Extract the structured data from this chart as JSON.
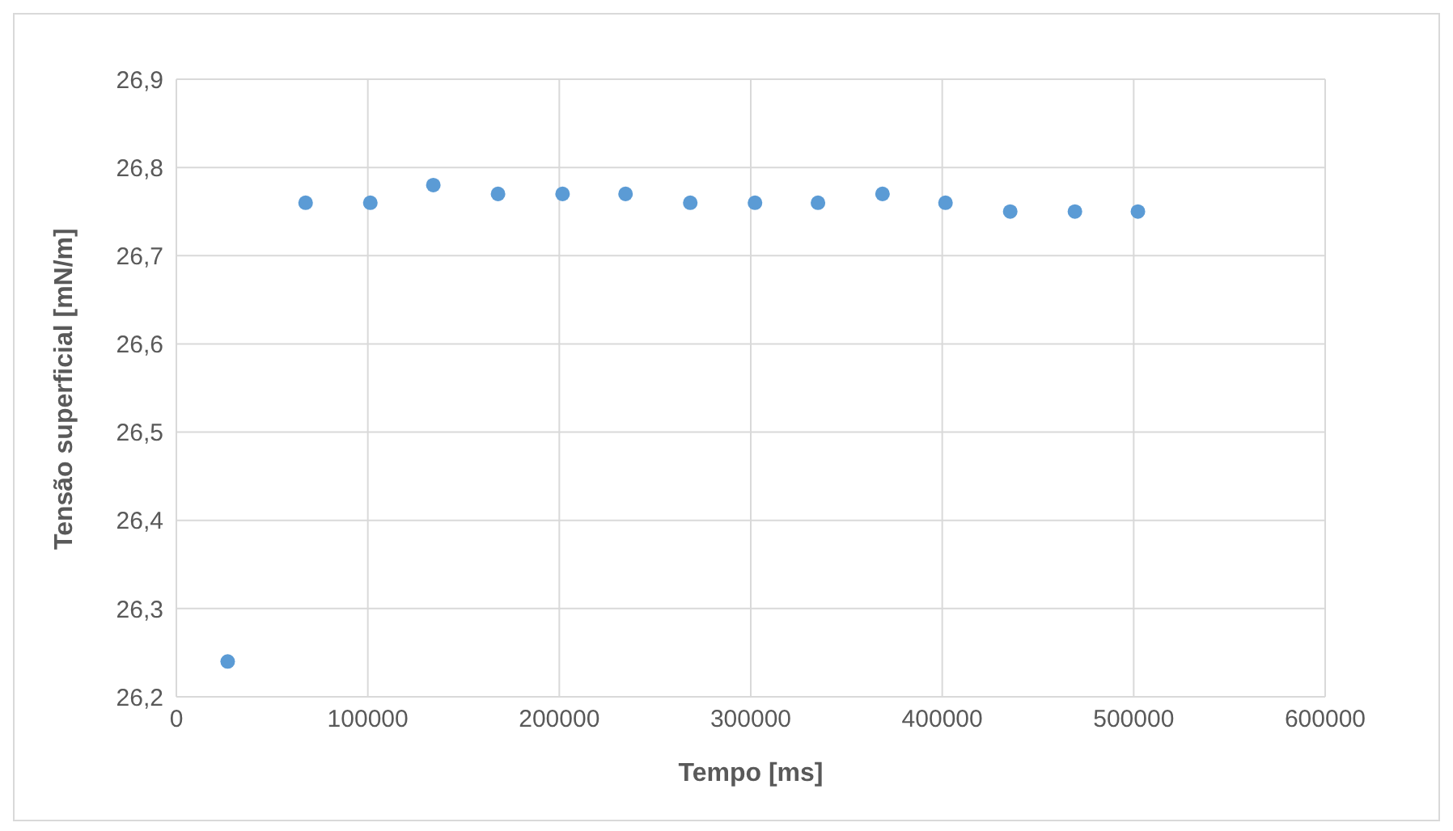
{
  "chart_data": {
    "type": "scatter",
    "xlabel": "Tempo [ms]",
    "ylabel": "Tensão superficial [mN/m]",
    "x": [
      26800,
      67500,
      101300,
      134200,
      168000,
      201700,
      234600,
      268400,
      302200,
      335100,
      368800,
      401700,
      435500,
      469300,
      502200
    ],
    "series": [
      {
        "color": "#5b9bd5",
        "values": [
          26.24,
          26.76,
          26.76,
          26.78,
          26.77,
          26.77,
          26.77,
          26.76,
          26.76,
          26.76,
          26.77,
          26.76,
          26.75,
          26.75,
          26.75
        ]
      }
    ],
    "xlim": [
      0,
      600000
    ],
    "xticks": [
      0,
      100000,
      200000,
      300000,
      400000,
      500000,
      600000
    ],
    "ylim": [
      26.2,
      26.9
    ],
    "yticks": [
      {
        "value": 26.2,
        "label": "26,2"
      },
      {
        "value": 26.3,
        "label": "26,3"
      },
      {
        "value": 26.4,
        "label": "26,4"
      },
      {
        "value": 26.5,
        "label": "26,5"
      },
      {
        "value": 26.6,
        "label": "26,6"
      },
      {
        "value": 26.7,
        "label": "26,7"
      },
      {
        "value": 26.8,
        "label": "26,8"
      },
      {
        "value": 26.9,
        "label": "26,9"
      }
    ],
    "grid": true,
    "legend": false,
    "marker": "circle"
  }
}
